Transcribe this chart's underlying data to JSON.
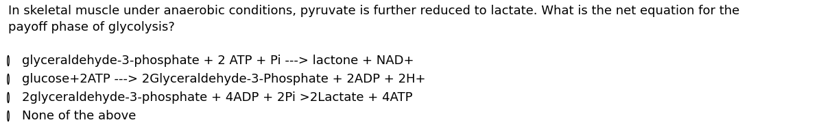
{
  "background_color": "#ffffff",
  "question_text": "In skeletal muscle under anaerobic conditions, pyruvate is further reduced to lactate. What is the net equation for the\npayoff phase of glycolysis?",
  "options": [
    "glyceraldehyde-3-phosphate + 2 ATP + Pi ---> lactone + NAD+",
    "glucose+2ATP ---> 2Glyceraldehyde-3-Phosphate + 2ADP + 2H+",
    "2glyceraldehyde-3-phosphate + 4ADP + 2Pi >2Lactate + 4ATP",
    "None of the above"
  ],
  "text_color": "#000000",
  "question_fontsize": 13.0,
  "option_fontsize": 13.0,
  "circle_color": "#000000",
  "fig_width": 11.97,
  "fig_height": 1.92,
  "dpi": 100
}
